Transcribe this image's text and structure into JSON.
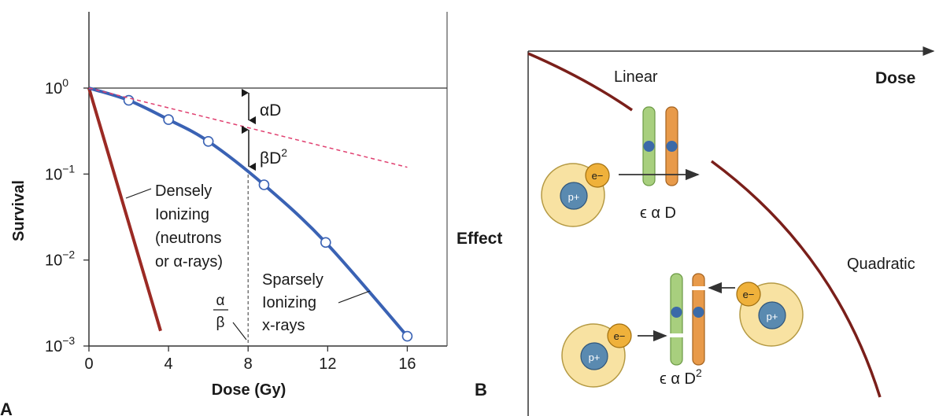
{
  "panel_a": {
    "label": "A",
    "ylabel": "Survival",
    "xlabel": "Dose (Gy)",
    "xticks": [
      "0",
      "4",
      "8",
      "12",
      "16"
    ],
    "yticks": [
      {
        "base": "10",
        "exp": "0"
      },
      {
        "base": "10",
        "exp": "−1"
      },
      {
        "base": "10",
        "exp": "−2"
      },
      {
        "base": "10",
        "exp": "−3"
      }
    ],
    "annotations": {
      "alpha_d": "αD",
      "beta_d2_base": "βD",
      "beta_d2_exp": "2",
      "densely": [
        "Densely",
        "Ionizing",
        "(neutrons",
        "or α-rays)"
      ],
      "sparsely": [
        "Sparsely",
        "Ionizing",
        "x-rays"
      ],
      "ratio_num": "α",
      "ratio_den": "β"
    },
    "colors": {
      "densely": "#9b2a24",
      "sparsely": "#3a62b4",
      "linear": "#e04070"
    }
  },
  "panel_b": {
    "label": "B",
    "ylabel": "Effect",
    "xlabel": "Dose",
    "linear_label": "Linear",
    "quadratic_label": "Quadratic",
    "eq_linear": "ϵ α D",
    "eq_quad_base": "ϵ α D",
    "eq_quad_exp": "2",
    "electron": "e−",
    "proton": "p+",
    "colors": {
      "curve": "#7a1f1a",
      "chrom_green": "#a8cf7e",
      "chrom_orange": "#e89a4a",
      "centromere": "#3b6aa8",
      "atom": "#f8e2a2",
      "nucleus": "#5a8ab0",
      "electron": "#efb13b"
    }
  },
  "chart_data": [
    {
      "type": "line",
      "title": "",
      "xlabel": "Dose (Gy)",
      "ylabel": "Survival",
      "xlim": [
        0,
        18
      ],
      "ylim": [
        0.001,
        1
      ],
      "yscale": "log",
      "series": [
        {
          "name": "Densely Ionizing (neutrons or α-rays)",
          "x": [
            0,
            3.6
          ],
          "y": [
            1,
            0.0015
          ]
        },
        {
          "name": "Sparsely Ionizing x-rays",
          "x": [
            0,
            2,
            4,
            6,
            8.8,
            11.9,
            16
          ],
          "y": [
            1,
            0.72,
            0.43,
            0.24,
            0.075,
            0.016,
            0.0013
          ],
          "markers": true
        },
        {
          "name": "αD",
          "x": [
            0,
            16
          ],
          "y": [
            1,
            0.12
          ],
          "style": "dashed"
        }
      ],
      "annotations": [
        "αD",
        "βD2",
        "α/β"
      ],
      "guide": {
        "x": 8,
        "label": "α/β"
      }
    },
    {
      "type": "line",
      "xlabel": "Dose",
      "ylabel": "Effect",
      "series": [
        {
          "name": "Linear"
        },
        {
          "name": "Quadratic"
        }
      ]
    }
  ]
}
